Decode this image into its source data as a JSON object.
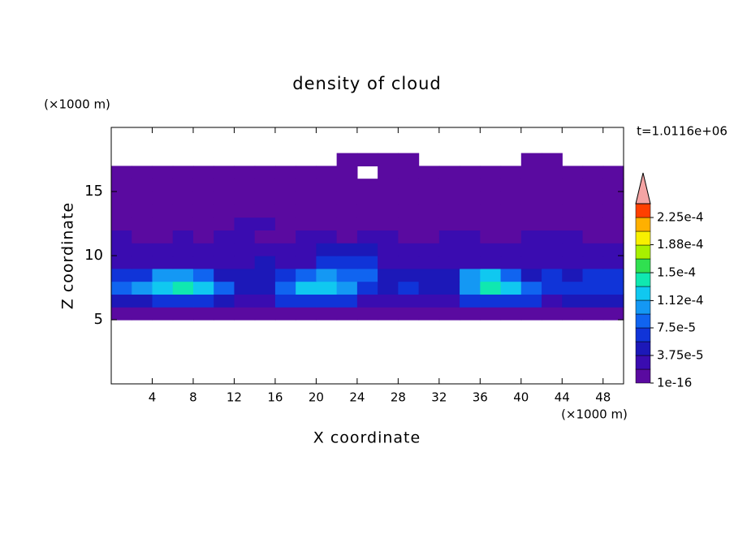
{
  "chart_data": {
    "type": "heatmap",
    "title": "density of cloud",
    "x_label": "X coordinate",
    "y_label": "Z coordinate",
    "x_unit": "(×1000 m)",
    "y_unit": "(×1000 m)",
    "annotation": "t=1.0116e+06",
    "xlim": [
      0,
      50
    ],
    "ylim": [
      0,
      20
    ],
    "xticks": [
      4,
      8,
      12,
      16,
      20,
      24,
      28,
      32,
      36,
      40,
      44,
      48
    ],
    "yticks": [
      5,
      10,
      15
    ],
    "x": [
      1,
      3,
      5,
      7,
      9,
      11,
      13,
      15,
      17,
      19,
      21,
      23,
      25,
      27,
      29,
      31,
      33,
      35,
      37,
      39,
      41,
      43,
      45,
      47,
      49
    ],
    "y": [
      5.5,
      6.5,
      7.5,
      8.5,
      9.5,
      10.5,
      11.5,
      12.5,
      13.5,
      14.5,
      15.5,
      16.5,
      17.5
    ],
    "z": [
      [
        5e-06,
        5e-06,
        5e-06,
        5e-06,
        5e-06,
        5e-06,
        5e-06,
        5e-06,
        5e-06,
        5e-06,
        5e-06,
        5e-06,
        5e-06,
        5e-06,
        5e-06,
        5e-06,
        5e-06,
        5e-06,
        5e-06,
        5e-06,
        5e-06,
        5e-06,
        5e-06,
        5e-06,
        5e-06
      ],
      [
        4.5e-05,
        4.5e-05,
        6e-05,
        6e-05,
        6e-05,
        4.5e-05,
        2.5e-05,
        2.5e-05,
        6e-05,
        6e-05,
        6e-05,
        6e-05,
        2.5e-05,
        2.5e-05,
        2.5e-05,
        2.5e-05,
        2.5e-05,
        6e-05,
        6e-05,
        6e-05,
        6e-05,
        2.5e-05,
        4.5e-05,
        4.5e-05,
        4.5e-05
      ],
      [
        8e-05,
        0.0001,
        0.00012,
        0.00014,
        0.00012,
        8e-05,
        4.5e-05,
        4.5e-05,
        8e-05,
        0.00012,
        0.00012,
        0.0001,
        6e-05,
        4.5e-05,
        6e-05,
        4.5e-05,
        4.5e-05,
        0.0001,
        0.00014,
        0.00012,
        8e-05,
        6e-05,
        6e-05,
        6e-05,
        6e-05
      ],
      [
        6e-05,
        6e-05,
        0.0001,
        0.0001,
        8e-05,
        4.5e-05,
        4.5e-05,
        4.5e-05,
        6e-05,
        8e-05,
        0.0001,
        8e-05,
        8e-05,
        4.5e-05,
        4.5e-05,
        4.5e-05,
        4.5e-05,
        0.0001,
        0.00012,
        8e-05,
        4.5e-05,
        6e-05,
        4.5e-05,
        6e-05,
        6e-05
      ],
      [
        2.5e-05,
        2.5e-05,
        2.5e-05,
        2.5e-05,
        2.5e-05,
        2.5e-05,
        2.5e-05,
        4.5e-05,
        2.5e-05,
        2.5e-05,
        6e-05,
        6e-05,
        6e-05,
        2.5e-05,
        2.5e-05,
        2.5e-05,
        2.5e-05,
        2.5e-05,
        2.5e-05,
        2.5e-05,
        2.5e-05,
        2.5e-05,
        2.5e-05,
        2.5e-05,
        2.5e-05
      ],
      [
        2.5e-05,
        2.5e-05,
        2.5e-05,
        2.5e-05,
        2.5e-05,
        2.5e-05,
        2.5e-05,
        2.5e-05,
        2.5e-05,
        2.5e-05,
        4.5e-05,
        4.5e-05,
        4.5e-05,
        2.5e-05,
        2.5e-05,
        2.5e-05,
        2.5e-05,
        2.5e-05,
        2.5e-05,
        2.5e-05,
        2.5e-05,
        2.5e-05,
        2.5e-05,
        2.5e-05,
        2.5e-05
      ],
      [
        2.5e-05,
        5e-06,
        5e-06,
        2.5e-05,
        5e-06,
        2.5e-05,
        2.5e-05,
        5e-06,
        5e-06,
        2.5e-05,
        2.5e-05,
        5e-06,
        2.5e-05,
        2.5e-05,
        5e-06,
        5e-06,
        2.5e-05,
        2.5e-05,
        5e-06,
        5e-06,
        2.5e-05,
        2.5e-05,
        2.5e-05,
        5e-06,
        5e-06
      ],
      [
        5e-06,
        5e-06,
        5e-06,
        5e-06,
        5e-06,
        5e-06,
        2.5e-05,
        2.5e-05,
        5e-06,
        5e-06,
        5e-06,
        5e-06,
        5e-06,
        5e-06,
        5e-06,
        5e-06,
        5e-06,
        5e-06,
        5e-06,
        5e-06,
        5e-06,
        5e-06,
        5e-06,
        5e-06,
        5e-06
      ],
      [
        5e-06,
        5e-06,
        5e-06,
        5e-06,
        5e-06,
        5e-06,
        5e-06,
        5e-06,
        5e-06,
        5e-06,
        5e-06,
        5e-06,
        5e-06,
        5e-06,
        5e-06,
        5e-06,
        5e-06,
        5e-06,
        5e-06,
        5e-06,
        5e-06,
        5e-06,
        5e-06,
        5e-06,
        5e-06
      ],
      [
        5e-06,
        5e-06,
        5e-06,
        5e-06,
        5e-06,
        5e-06,
        5e-06,
        5e-06,
        5e-06,
        5e-06,
        5e-06,
        5e-06,
        5e-06,
        5e-06,
        5e-06,
        5e-06,
        5e-06,
        5e-06,
        5e-06,
        5e-06,
        5e-06,
        5e-06,
        5e-06,
        5e-06,
        5e-06
      ],
      [
        5e-06,
        5e-06,
        5e-06,
        5e-06,
        5e-06,
        5e-06,
        5e-06,
        5e-06,
        5e-06,
        5e-06,
        5e-06,
        5e-06,
        5e-06,
        5e-06,
        5e-06,
        5e-06,
        5e-06,
        5e-06,
        5e-06,
        5e-06,
        5e-06,
        5e-06,
        5e-06,
        5e-06,
        5e-06
      ],
      [
        5e-06,
        5e-06,
        5e-06,
        5e-06,
        5e-06,
        5e-06,
        5e-06,
        5e-06,
        5e-06,
        5e-06,
        5e-06,
        5e-06,
        null,
        5e-06,
        5e-06,
        5e-06,
        5e-06,
        5e-06,
        5e-06,
        5e-06,
        5e-06,
        5e-06,
        5e-06,
        5e-06,
        5e-06
      ],
      [
        null,
        null,
        null,
        null,
        null,
        null,
        null,
        null,
        null,
        null,
        null,
        5e-06,
        5e-06,
        5e-06,
        5e-06,
        null,
        null,
        null,
        null,
        null,
        5e-06,
        5e-06,
        null,
        null,
        null
      ]
    ],
    "levels": [
      1e-16,
      1.875e-05,
      3.75e-05,
      5.625e-05,
      7.5e-05,
      9.375e-05,
      0.0001125,
      0.00013125,
      0.00015,
      0.00016875,
      0.0001875,
      0.00020625,
      0.000225,
      0.00024375
    ],
    "colors": [
      "#5a0aa0",
      "#3a0cb0",
      "#1c18b8",
      "#1034d8",
      "#1064f0",
      "#1498f4",
      "#10c8f0",
      "#10e8b0",
      "#30e050",
      "#a8f000",
      "#f8f000",
      "#ffb000",
      "#ff4000"
    ],
    "extend_color": "#f4a4a4",
    "clim": [
      1e-16,
      0.000225
    ],
    "cticks": [
      {
        "value": 1e-16,
        "label": "1e-16"
      },
      {
        "value": 3.75e-05,
        "label": "3.75e-5"
      },
      {
        "value": 7.5e-05,
        "label": "7.5e-5"
      },
      {
        "value": 0.000112,
        "label": "1.12e-4"
      },
      {
        "value": 0.00015,
        "label": "1.5e-4"
      },
      {
        "value": 0.000188,
        "label": "1.88e-4"
      },
      {
        "value": 0.000225,
        "label": "2.25e-4"
      }
    ]
  }
}
